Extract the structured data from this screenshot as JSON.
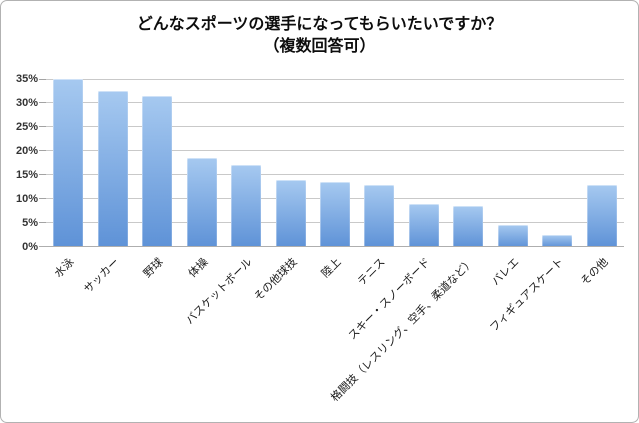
{
  "title": {
    "line1": "どんなスポーツの選手になってもらいたいですか？",
    "line2": "（複数回答可）"
  },
  "chart_data": {
    "type": "bar",
    "title": "どんなスポーツの選手になってもらいたいですか？（複数回答可）",
    "categories": [
      "水泳",
      "サッカー",
      "野球",
      "体操",
      "バスケットボール",
      "その他球技",
      "陸上",
      "テニス",
      "スキー・スノーボード",
      "格闘技（レスリング、空手、柔道など）",
      "バレエ",
      "フィギュアスケート",
      "その他"
    ],
    "values": [
      35,
      32.5,
      31.5,
      18.5,
      17,
      14,
      13.5,
      13,
      9,
      8.5,
      4.5,
      2.5,
      13
    ],
    "xlabel": "",
    "ylabel": "",
    "ylim": [
      0,
      35
    ],
    "ytick_step": 5,
    "ytick_labels": [
      "0%",
      "5%",
      "10%",
      "15%",
      "20%",
      "25%",
      "30%",
      "35%"
    ],
    "grid": true,
    "legend": false,
    "colors": {
      "bar_gradient_top": "#a6c9f0",
      "bar_gradient_bottom": "#5e92d7",
      "gridline": "#c9c9c9",
      "axis_line": "#aeaeae"
    }
  }
}
